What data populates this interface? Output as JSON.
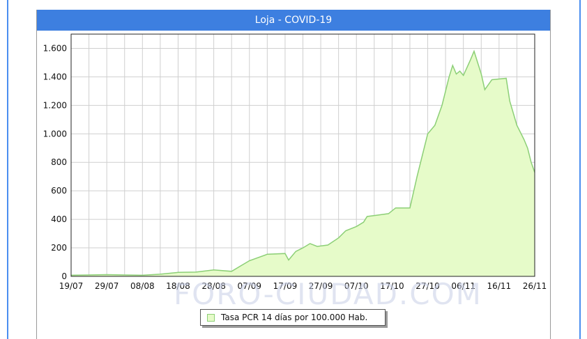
{
  "colors": {
    "header_blue": "#3d7fe0",
    "frame_blue": "#4a8ef0",
    "area_fill": "#e6fbc9",
    "area_line": "#8ccf76",
    "grid": "#cfcfcf"
  },
  "title": "Loja - COVID-19",
  "watermark": "FORO-CIUDAD.COM",
  "chart_data": {
    "type": "area",
    "title": "Loja - COVID-19",
    "xlabel": "",
    "ylabel": "",
    "ylim": [
      0,
      1700
    ],
    "y_ticks": [
      0,
      200,
      400,
      600,
      800,
      1000,
      1200,
      1400,
      1600
    ],
    "y_tick_labels": [
      "0",
      "200",
      "400",
      "600",
      "800",
      "1.000",
      "1.200",
      "1.400",
      "1.600"
    ],
    "x_range": [
      "19/07",
      "26/11"
    ],
    "x_tick_labels": [
      "19/07",
      "29/07",
      "08/08",
      "18/08",
      "28/08",
      "07/09",
      "17/09",
      "27/09",
      "07/10",
      "17/10",
      "27/10",
      "06/11",
      "16/11",
      "26/11"
    ],
    "grid": true,
    "legend_position": "bottom-center",
    "series": [
      {
        "name": "Tasa PCR 14 días por 100.000 Hab.",
        "points": [
          [
            "19/07",
            8
          ],
          [
            "29/07",
            12
          ],
          [
            "03/08",
            10
          ],
          [
            "08/08",
            8
          ],
          [
            "13/08",
            15
          ],
          [
            "18/08",
            28
          ],
          [
            "23/08",
            30
          ],
          [
            "28/08",
            45
          ],
          [
            "02/09",
            35
          ],
          [
            "05/09",
            80
          ],
          [
            "07/09",
            110
          ],
          [
            "12/09",
            155
          ],
          [
            "17/09",
            160
          ],
          [
            "18/09",
            115
          ],
          [
            "20/09",
            175
          ],
          [
            "22/09",
            200
          ],
          [
            "24/09",
            230
          ],
          [
            "26/09",
            210
          ],
          [
            "29/09",
            220
          ],
          [
            "02/10",
            270
          ],
          [
            "04/10",
            320
          ],
          [
            "07/10",
            350
          ],
          [
            "09/10",
            380
          ],
          [
            "10/10",
            420
          ],
          [
            "13/10",
            430
          ],
          [
            "16/10",
            440
          ],
          [
            "18/10",
            480
          ],
          [
            "22/10",
            480
          ],
          [
            "24/10",
            700
          ],
          [
            "27/10",
            1000
          ],
          [
            "29/10",
            1060
          ],
          [
            "31/10",
            1200
          ],
          [
            "02/11",
            1400
          ],
          [
            "03/11",
            1480
          ],
          [
            "04/11",
            1420
          ],
          [
            "05/11",
            1440
          ],
          [
            "06/11",
            1410
          ],
          [
            "08/11",
            1520
          ],
          [
            "09/11",
            1580
          ],
          [
            "11/11",
            1420
          ],
          [
            "12/11",
            1310
          ],
          [
            "14/11",
            1380
          ],
          [
            "18/11",
            1390
          ],
          [
            "19/11",
            1230
          ],
          [
            "21/11",
            1060
          ],
          [
            "23/11",
            960
          ],
          [
            "24/11",
            900
          ],
          [
            "25/11",
            800
          ],
          [
            "26/11",
            730
          ]
        ]
      }
    ]
  }
}
